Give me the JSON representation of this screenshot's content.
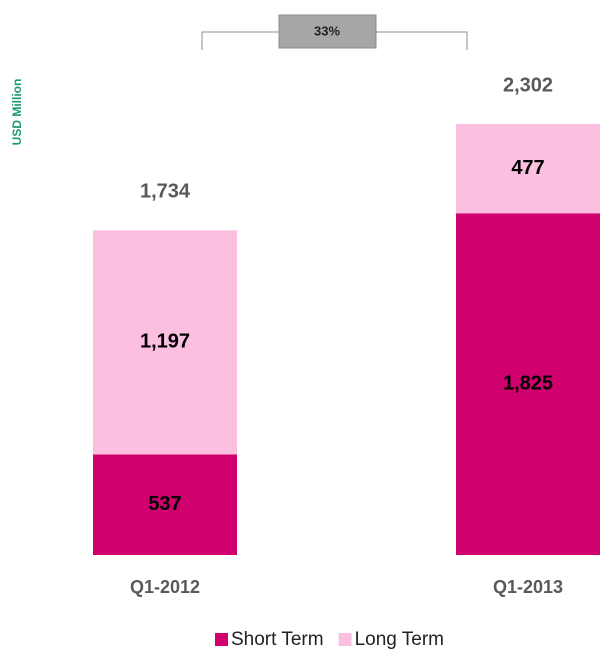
{
  "chart_data": {
    "type": "stacked_bar",
    "y_label": "USD Million",
    "annotation": "33%",
    "categories": [
      "Q1-2012",
      "Q1-2013"
    ],
    "series": [
      {
        "name": "Short Term",
        "color": "#d0006f",
        "values": [
          537,
          1825
        ],
        "value_labels": [
          "537",
          "1,825"
        ]
      },
      {
        "name": "Long Term",
        "color": "#fbbfe0",
        "values": [
          1197,
          477
        ],
        "value_labels": [
          "1,197",
          "477"
        ]
      }
    ],
    "totals": [
      1734,
      2302
    ],
    "total_labels": [
      "1,734",
      "2,302"
    ]
  }
}
